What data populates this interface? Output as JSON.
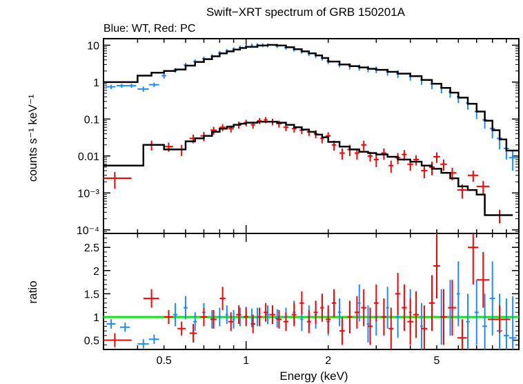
{
  "chart_data": [
    {
      "type": "scatter",
      "panel": "spectrum",
      "title": "Swift−XRT spectrum of GRB 150201A",
      "subtitle": "Blue: WT, Red: PC",
      "xlabel": "Energy (keV)",
      "ylabel": "counts s⁻¹ keV⁻¹",
      "xscale": "log",
      "yscale": "log",
      "xlim": [
        0.3,
        10
      ],
      "ylim": [
        8e-05,
        15
      ],
      "yticks": [
        {
          "value": 10,
          "label": "10"
        },
        {
          "value": 1,
          "label": "1"
        },
        {
          "value": 0.1,
          "label": "0.1"
        },
        {
          "value": 0.01,
          "label": "0.01"
        },
        {
          "value": 0.001,
          "label": "10⁻³"
        },
        {
          "value": 0.0001,
          "label": "10⁻⁴"
        }
      ],
      "series": [
        {
          "name": "WT data",
          "color": "#1a8cff",
          "x": [
            0.32,
            0.35,
            0.38,
            0.42,
            0.46,
            0.5,
            0.55,
            0.6,
            0.65,
            0.7,
            0.75,
            0.8,
            0.85,
            0.9,
            0.95,
            1.0,
            1.05,
            1.1,
            1.15,
            1.2,
            1.3,
            1.4,
            1.5,
            1.6,
            1.7,
            1.8,
            1.9,
            2.0,
            2.2,
            2.4,
            2.6,
            2.8,
            3.0,
            3.3,
            3.6,
            4.0,
            4.4,
            4.8,
            5.2,
            5.6,
            6.0,
            6.5,
            7.0,
            7.5,
            8.0,
            8.5,
            9.0,
            9.5
          ],
          "y": [
            0.75,
            0.8,
            0.8,
            0.65,
            0.85,
            1.5,
            2.1,
            2.9,
            3.6,
            4.3,
            5.0,
            6.2,
            7.0,
            7.8,
            8.6,
            9.3,
            9.8,
            10.2,
            10.0,
            9.9,
            9.5,
            8.6,
            7.7,
            6.8,
            5.9,
            5.3,
            4.5,
            3.7,
            3.0,
            2.7,
            2.5,
            2.3,
            2.2,
            1.9,
            1.7,
            1.45,
            1.15,
            0.9,
            0.7,
            0.55,
            0.4,
            0.27,
            0.16,
            0.095,
            0.055,
            0.03,
            0.016,
            0.009
          ],
          "xerr": [
            0.012,
            0.015,
            0.015,
            0.02,
            0.02,
            0.01,
            0.01,
            0.01,
            0.01,
            0.01,
            0.01,
            0.01,
            0.01,
            0.01,
            0.01,
            0.01,
            0.01,
            0.01,
            0.01,
            0.01,
            0.02,
            0.02,
            0.02,
            0.02,
            0.02,
            0.02,
            0.02,
            0.03,
            0.03,
            0.03,
            0.03,
            0.03,
            0.04,
            0.04,
            0.05,
            0.05,
            0.05,
            0.06,
            0.06,
            0.07,
            0.08,
            0.1,
            0.12,
            0.15,
            0.18,
            0.2,
            0.2,
            0.3
          ],
          "yerr": [
            0.1,
            0.1,
            0.1,
            0.1,
            0.12,
            0.25,
            0.3,
            0.4,
            0.5,
            0.6,
            0.7,
            0.8,
            0.9,
            1.0,
            1.1,
            1.1,
            1.2,
            1.2,
            1.2,
            1.2,
            1.1,
            1.1,
            1.0,
            0.9,
            0.8,
            0.8,
            0.7,
            0.6,
            0.5,
            0.5,
            0.45,
            0.45,
            0.45,
            0.4,
            0.4,
            0.35,
            0.3,
            0.25,
            0.2,
            0.17,
            0.13,
            0.09,
            0.06,
            0.04,
            0.025,
            0.015,
            0.008,
            0.005
          ]
        },
        {
          "name": "PC data",
          "color": "#ff0000",
          "x": [
            0.33,
            0.45,
            0.52,
            0.58,
            0.64,
            0.7,
            0.76,
            0.82,
            0.88,
            0.94,
            1.0,
            1.06,
            1.12,
            1.18,
            1.25,
            1.32,
            1.4,
            1.5,
            1.6,
            1.7,
            1.8,
            1.9,
            2.0,
            2.1,
            2.25,
            2.4,
            2.55,
            2.7,
            2.85,
            3.0,
            3.2,
            3.4,
            3.6,
            3.8,
            4.0,
            4.2,
            4.5,
            4.8,
            5.0,
            5.3,
            5.7,
            6.2,
            6.8,
            7.4,
            8.5
          ],
          "y": [
            0.0025,
            0.02,
            0.018,
            0.015,
            0.03,
            0.035,
            0.05,
            0.06,
            0.055,
            0.07,
            0.08,
            0.07,
            0.09,
            0.095,
            0.085,
            0.075,
            0.06,
            0.055,
            0.05,
            0.045,
            0.04,
            0.03,
            0.035,
            0.02,
            0.012,
            0.015,
            0.012,
            0.02,
            0.01,
            0.008,
            0.012,
            0.0055,
            0.009,
            0.011,
            0.006,
            0.008,
            0.004,
            0.005,
            0.0095,
            0.006,
            0.0035,
            0.0012,
            0.003,
            0.0015,
            0.00025
          ],
          "xerr": [
            0.05,
            0.03,
            0.02,
            0.02,
            0.02,
            0.02,
            0.02,
            0.02,
            0.02,
            0.02,
            0.02,
            0.02,
            0.02,
            0.02,
            0.03,
            0.03,
            0.03,
            0.03,
            0.03,
            0.03,
            0.03,
            0.03,
            0.04,
            0.04,
            0.05,
            0.05,
            0.05,
            0.06,
            0.06,
            0.06,
            0.07,
            0.07,
            0.08,
            0.08,
            0.1,
            0.1,
            0.12,
            0.12,
            0.14,
            0.15,
            0.2,
            0.25,
            0.3,
            0.4,
            0.8
          ],
          "yerr": [
            0.0012,
            0.006,
            0.005,
            0.005,
            0.008,
            0.01,
            0.012,
            0.013,
            0.012,
            0.015,
            0.016,
            0.015,
            0.017,
            0.018,
            0.017,
            0.016,
            0.013,
            0.012,
            0.011,
            0.01,
            0.01,
            0.008,
            0.009,
            0.006,
            0.004,
            0.005,
            0.004,
            0.006,
            0.003,
            0.003,
            0.004,
            0.002,
            0.003,
            0.0035,
            0.002,
            0.0025,
            0.0015,
            0.002,
            0.003,
            0.002,
            0.0013,
            0.0005,
            0.001,
            0.0006,
            0.0001
          ]
        },
        {
          "name": "WT model",
          "color": "#000000",
          "type": "step",
          "x": [
            0.3,
            0.4,
            0.45,
            0.5,
            0.55,
            0.6,
            0.65,
            0.7,
            0.75,
            0.8,
            0.85,
            0.9,
            0.95,
            1.0,
            1.1,
            1.2,
            1.3,
            1.4,
            1.5,
            1.6,
            1.7,
            1.8,
            1.9,
            2.0,
            2.2,
            2.4,
            2.6,
            2.8,
            3.0,
            3.3,
            3.6,
            4.0,
            4.4,
            4.8,
            5.2,
            5.6,
            6.0,
            6.5,
            7.0,
            7.5,
            8.0,
            8.5,
            9.0,
            10.0
          ],
          "y": [
            1.0,
            1.5,
            1.8,
            2.0,
            2.2,
            2.8,
            3.5,
            4.2,
            5.0,
            6.0,
            6.8,
            7.6,
            8.4,
            9.0,
            9.8,
            10.2,
            9.8,
            8.8,
            7.8,
            6.8,
            6.0,
            5.3,
            4.5,
            3.6,
            3.0,
            2.7,
            2.5,
            2.3,
            2.15,
            1.9,
            1.7,
            1.45,
            1.15,
            0.9,
            0.7,
            0.52,
            0.38,
            0.26,
            0.16,
            0.09,
            0.05,
            0.028,
            0.014,
            0.014
          ]
        },
        {
          "name": "PC model",
          "color": "#000000",
          "type": "step",
          "x": [
            0.3,
            0.42,
            0.5,
            0.55,
            0.6,
            0.65,
            0.7,
            0.75,
            0.8,
            0.85,
            0.9,
            0.95,
            1.0,
            1.1,
            1.2,
            1.3,
            1.4,
            1.5,
            1.6,
            1.7,
            1.8,
            1.9,
            2.0,
            2.2,
            2.4,
            2.6,
            2.8,
            3.0,
            3.3,
            3.6,
            4.0,
            4.4,
            4.8,
            5.2,
            5.6,
            6.0,
            6.5,
            7.0,
            7.5,
            9.5
          ],
          "y": [
            0.0055,
            0.02,
            0.015,
            0.015,
            0.025,
            0.03,
            0.035,
            0.045,
            0.055,
            0.062,
            0.07,
            0.075,
            0.08,
            0.085,
            0.085,
            0.08,
            0.07,
            0.06,
            0.052,
            0.045,
            0.038,
            0.032,
            0.024,
            0.018,
            0.015,
            0.013,
            0.012,
            0.011,
            0.0095,
            0.008,
            0.007,
            0.0055,
            0.0045,
            0.0035,
            0.0025,
            0.0015,
            0.0012,
            0.0009,
            0.00025,
            0.00025
          ]
        }
      ]
    },
    {
      "type": "scatter",
      "panel": "ratio",
      "xlabel": "Energy (keV)",
      "ylabel": "ratio",
      "xscale": "log",
      "yscale": "linear",
      "xlim": [
        0.3,
        10
      ],
      "ylim": [
        0.3,
        2.8
      ],
      "yticks": [
        {
          "value": 0.5,
          "label": "0.5"
        },
        {
          "value": 1,
          "label": "1"
        },
        {
          "value": 1.5,
          "label": "1.5"
        },
        {
          "value": 2,
          "label": "2"
        },
        {
          "value": 2.5,
          "label": "2.5"
        }
      ],
      "xticks": [
        {
          "value": 0.5,
          "label": "0.5"
        },
        {
          "value": 1,
          "label": "1"
        },
        {
          "value": 2,
          "label": "2"
        },
        {
          "value": 5,
          "label": "5"
        }
      ],
      "reference_line": {
        "value": 1,
        "color": "#00ee00"
      },
      "series": [
        {
          "name": "WT ratio",
          "color": "#1a8cff",
          "x": [
            0.32,
            0.36,
            0.42,
            0.46,
            0.55,
            0.6,
            0.65,
            0.7,
            0.75,
            0.8,
            0.85,
            0.9,
            0.95,
            1.0,
            1.05,
            1.1,
            1.2,
            1.3,
            1.4,
            1.5,
            1.6,
            1.7,
            1.8,
            1.9,
            2.0,
            2.2,
            2.4,
            2.6,
            2.8,
            3.0,
            3.3,
            3.6,
            4.0,
            4.4,
            4.8,
            5.2,
            5.6,
            6.0,
            6.5,
            7.0,
            7.5,
            8.0,
            8.5,
            9.0,
            9.5
          ],
          "y": [
            0.85,
            0.78,
            0.42,
            0.52,
            1.05,
            1.2,
            0.9,
            1.1,
            0.95,
            1.0,
            1.05,
            0.95,
            1.0,
            1.02,
            0.98,
            1.0,
            1.05,
            0.97,
            1.0,
            1.1,
            0.95,
            1.0,
            1.05,
            1.2,
            0.9,
            1.1,
            1.0,
            1.3,
            0.85,
            1.0,
            1.2,
            1.0,
            1.1,
            0.8,
            1.3,
            1.0,
            1.2,
            1.5,
            0.9,
            1.1,
            0.8,
            1.4,
            0.7,
            0.6,
            0.55
          ],
          "xerr": [
            0.012,
            0.015,
            0.02,
            0.02,
            0.01,
            0.01,
            0.01,
            0.01,
            0.01,
            0.01,
            0.01,
            0.01,
            0.01,
            0.01,
            0.01,
            0.01,
            0.02,
            0.02,
            0.02,
            0.02,
            0.02,
            0.02,
            0.02,
            0.02,
            0.03,
            0.03,
            0.03,
            0.03,
            0.03,
            0.04,
            0.04,
            0.05,
            0.05,
            0.05,
            0.06,
            0.06,
            0.07,
            0.08,
            0.1,
            0.12,
            0.15,
            0.18,
            0.2,
            0.2,
            0.3
          ],
          "yerr": [
            0.1,
            0.1,
            0.1,
            0.1,
            0.25,
            0.25,
            0.2,
            0.2,
            0.2,
            0.2,
            0.2,
            0.2,
            0.2,
            0.2,
            0.2,
            0.2,
            0.2,
            0.2,
            0.2,
            0.25,
            0.25,
            0.25,
            0.3,
            0.3,
            0.3,
            0.3,
            0.35,
            0.4,
            0.4,
            0.4,
            0.45,
            0.45,
            0.5,
            0.5,
            0.6,
            0.6,
            0.6,
            0.7,
            0.6,
            0.7,
            0.7,
            0.8,
            0.8,
            0.8,
            0.9
          ]
        },
        {
          "name": "PC ratio",
          "color": "#ff0000",
          "x": [
            0.33,
            0.45,
            0.52,
            0.58,
            0.64,
            0.7,
            0.76,
            0.82,
            0.88,
            0.94,
            1.0,
            1.06,
            1.12,
            1.18,
            1.25,
            1.32,
            1.4,
            1.5,
            1.6,
            1.7,
            1.8,
            1.9,
            2.0,
            2.1,
            2.25,
            2.4,
            2.55,
            2.7,
            2.85,
            3.0,
            3.2,
            3.4,
            3.6,
            3.8,
            4.0,
            4.2,
            4.5,
            4.8,
            5.0,
            5.3,
            5.7,
            6.2,
            6.8,
            7.4,
            8.5
          ],
          "y": [
            0.5,
            1.4,
            1.0,
            0.75,
            0.65,
            1.0,
            0.95,
            1.4,
            0.9,
            1.05,
            1.0,
            0.85,
            1.0,
            1.1,
            1.05,
            0.95,
            0.9,
            1.05,
            1.3,
            0.9,
            1.1,
            1.2,
            0.95,
            1.3,
            0.7,
            1.0,
            1.1,
            1.2,
            0.8,
            1.3,
            1.0,
            0.75,
            1.5,
            1.2,
            0.9,
            1.05,
            0.75,
            1.3,
            2.1,
            1.0,
            1.2,
            0.55,
            2.5,
            1.8,
            0.95
          ],
          "xerr": [
            0.05,
            0.03,
            0.02,
            0.02,
            0.02,
            0.02,
            0.02,
            0.02,
            0.02,
            0.02,
            0.02,
            0.02,
            0.02,
            0.02,
            0.03,
            0.03,
            0.03,
            0.03,
            0.03,
            0.03,
            0.03,
            0.03,
            0.04,
            0.04,
            0.05,
            0.05,
            0.05,
            0.06,
            0.06,
            0.06,
            0.07,
            0.07,
            0.08,
            0.08,
            0.1,
            0.1,
            0.12,
            0.12,
            0.14,
            0.15,
            0.2,
            0.25,
            0.3,
            0.4,
            0.8
          ],
          "yerr": [
            0.15,
            0.2,
            0.15,
            0.15,
            0.2,
            0.2,
            0.2,
            0.25,
            0.2,
            0.2,
            0.2,
            0.2,
            0.2,
            0.2,
            0.2,
            0.2,
            0.2,
            0.25,
            0.25,
            0.25,
            0.25,
            0.3,
            0.3,
            0.3,
            0.3,
            0.35,
            0.35,
            0.4,
            0.4,
            0.4,
            0.4,
            0.45,
            0.45,
            0.5,
            0.5,
            0.5,
            0.5,
            0.6,
            0.7,
            0.6,
            0.6,
            0.4,
            0.8,
            0.6,
            0.3
          ]
        }
      ]
    }
  ]
}
